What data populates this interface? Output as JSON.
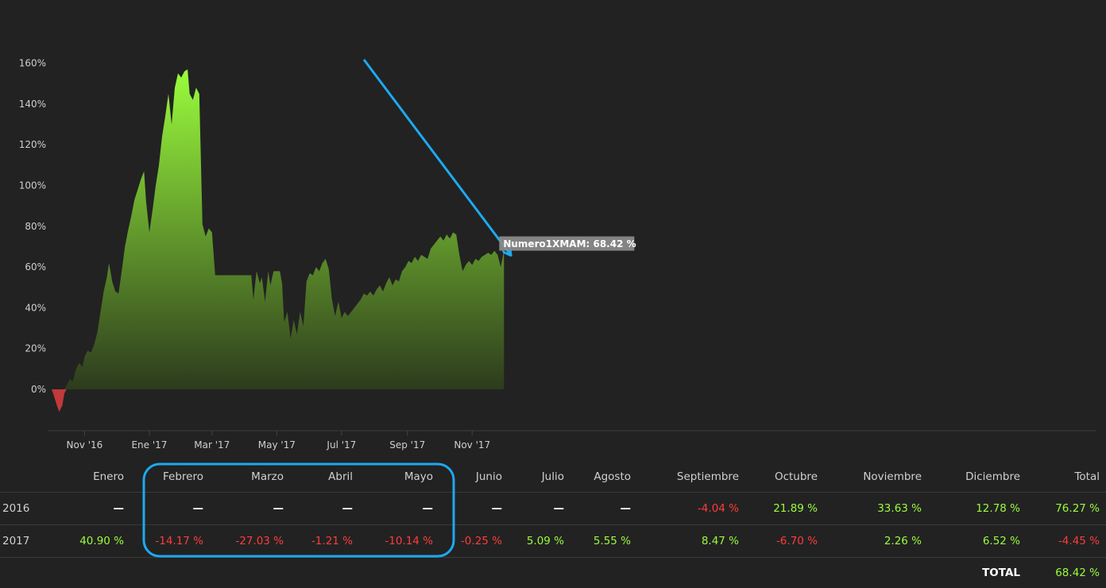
{
  "chart_data": {
    "type": "area",
    "series_name": "Numero1XMAM",
    "tooltip": "Numero1XMAM: 68.42 %",
    "ylim": [
      -20,
      170
    ],
    "y_ticks": [
      "0%",
      "20%",
      "40%",
      "60%",
      "80%",
      "100%",
      "120%",
      "140%",
      "160%"
    ],
    "x_ticks": [
      "Nov '16",
      "Ene '17",
      "Mar '17",
      "May '17",
      "Jul '17",
      "Sep '17",
      "Nov '17"
    ],
    "points": [
      [
        "2016-10-01",
        0
      ],
      [
        "2016-10-03",
        -3
      ],
      [
        "2016-10-06",
        -8
      ],
      [
        "2016-10-08",
        -11
      ],
      [
        "2016-10-11",
        -8
      ],
      [
        "2016-10-13",
        -2
      ],
      [
        "2016-10-15",
        2
      ],
      [
        "2016-10-18",
        5
      ],
      [
        "2016-10-21",
        4
      ],
      [
        "2016-10-24",
        10
      ],
      [
        "2016-10-27",
        13
      ],
      [
        "2016-10-30",
        11
      ],
      [
        "2016-11-01",
        16
      ],
      [
        "2016-11-04",
        19
      ],
      [
        "2016-11-07",
        18
      ],
      [
        "2016-11-10",
        22
      ],
      [
        "2016-11-13",
        28
      ],
      [
        "2016-11-16",
        38
      ],
      [
        "2016-11-19",
        48
      ],
      [
        "2016-11-22",
        55
      ],
      [
        "2016-11-24",
        62
      ],
      [
        "2016-11-27",
        53
      ],
      [
        "2016-11-30",
        48
      ],
      [
        "2016-12-03",
        47
      ],
      [
        "2016-12-06",
        58
      ],
      [
        "2016-12-09",
        70
      ],
      [
        "2016-12-12",
        78
      ],
      [
        "2016-12-15",
        85
      ],
      [
        "2016-12-18",
        93
      ],
      [
        "2016-12-21",
        98
      ],
      [
        "2016-12-24",
        103
      ],
      [
        "2016-12-27",
        107
      ],
      [
        "2016-12-29",
        92
      ],
      [
        "2017-01-01",
        77
      ],
      [
        "2017-01-04",
        88
      ],
      [
        "2017-01-07",
        100
      ],
      [
        "2017-01-10",
        110
      ],
      [
        "2017-01-13",
        124
      ],
      [
        "2017-01-16",
        134
      ],
      [
        "2017-01-19",
        145
      ],
      [
        "2017-01-22",
        130
      ],
      [
        "2017-01-25",
        148
      ],
      [
        "2017-01-28",
        155
      ],
      [
        "2017-01-31",
        153
      ],
      [
        "2017-02-03",
        156
      ],
      [
        "2017-02-06",
        157
      ],
      [
        "2017-02-08",
        145
      ],
      [
        "2017-02-11",
        142
      ],
      [
        "2017-02-14",
        148
      ],
      [
        "2017-02-17",
        145
      ],
      [
        "2017-02-20",
        81
      ],
      [
        "2017-02-23",
        75
      ],
      [
        "2017-02-26",
        79
      ],
      [
        "2017-03-01",
        77
      ],
      [
        "2017-03-04",
        56
      ],
      [
        "2017-03-10",
        56
      ],
      [
        "2017-03-20",
        56
      ],
      [
        "2017-03-30",
        56
      ],
      [
        "2017-04-07",
        56
      ],
      [
        "2017-04-09",
        44
      ],
      [
        "2017-04-12",
        58
      ],
      [
        "2017-04-15",
        52
      ],
      [
        "2017-04-17",
        55
      ],
      [
        "2017-04-20",
        43
      ],
      [
        "2017-04-23",
        58
      ],
      [
        "2017-04-25",
        51
      ],
      [
        "2017-04-28",
        58
      ],
      [
        "2017-05-04",
        58
      ],
      [
        "2017-05-06",
        52
      ],
      [
        "2017-05-08",
        33
      ],
      [
        "2017-05-11",
        38
      ],
      [
        "2017-05-14",
        25
      ],
      [
        "2017-05-17",
        34
      ],
      [
        "2017-05-20",
        27
      ],
      [
        "2017-05-23",
        38
      ],
      [
        "2017-05-26",
        31
      ],
      [
        "2017-05-29",
        53
      ],
      [
        "2017-06-01",
        57
      ],
      [
        "2017-06-04",
        56
      ],
      [
        "2017-06-07",
        60
      ],
      [
        "2017-06-10",
        58
      ],
      [
        "2017-06-13",
        62
      ],
      [
        "2017-06-16",
        64
      ],
      [
        "2017-06-19",
        59
      ],
      [
        "2017-06-22",
        44
      ],
      [
        "2017-06-25",
        36
      ],
      [
        "2017-06-28",
        43
      ],
      [
        "2017-07-01",
        35
      ],
      [
        "2017-07-04",
        38
      ],
      [
        "2017-07-07",
        36
      ],
      [
        "2017-07-10",
        38
      ],
      [
        "2017-07-13",
        40
      ],
      [
        "2017-07-16",
        42
      ],
      [
        "2017-07-19",
        44
      ],
      [
        "2017-07-22",
        47
      ],
      [
        "2017-07-25",
        46
      ],
      [
        "2017-07-28",
        48
      ],
      [
        "2017-07-31",
        46
      ],
      [
        "2017-08-03",
        49
      ],
      [
        "2017-08-06",
        51
      ],
      [
        "2017-08-09",
        48
      ],
      [
        "2017-08-12",
        52
      ],
      [
        "2017-08-15",
        55
      ],
      [
        "2017-08-18",
        51
      ],
      [
        "2017-08-21",
        54
      ],
      [
        "2017-08-24",
        53
      ],
      [
        "2017-08-27",
        58
      ],
      [
        "2017-08-30",
        60
      ],
      [
        "2017-09-02",
        63
      ],
      [
        "2017-09-05",
        62
      ],
      [
        "2017-09-08",
        65
      ],
      [
        "2017-09-11",
        63
      ],
      [
        "2017-09-14",
        66
      ],
      [
        "2017-09-17",
        65
      ],
      [
        "2017-09-20",
        64
      ],
      [
        "2017-09-23",
        69
      ],
      [
        "2017-09-26",
        71
      ],
      [
        "2017-09-29",
        73
      ],
      [
        "2017-10-02",
        75
      ],
      [
        "2017-10-05",
        73
      ],
      [
        "2017-10-08",
        76
      ],
      [
        "2017-10-11",
        74
      ],
      [
        "2017-10-14",
        77
      ],
      [
        "2017-10-17",
        76
      ],
      [
        "2017-10-20",
        66
      ],
      [
        "2017-10-23",
        58
      ],
      [
        "2017-10-26",
        61
      ],
      [
        "2017-10-29",
        63
      ],
      [
        "2017-11-01",
        61
      ],
      [
        "2017-11-04",
        64
      ],
      [
        "2017-11-07",
        63
      ],
      [
        "2017-11-10",
        65
      ],
      [
        "2017-11-13",
        66
      ],
      [
        "2017-11-16",
        67
      ],
      [
        "2017-11-19",
        66
      ],
      [
        "2017-11-22",
        68
      ],
      [
        "2017-11-25",
        66
      ],
      [
        "2017-11-28",
        60
      ],
      [
        "2017-12-01",
        68.42
      ]
    ],
    "colors": {
      "positive_top": "#9afc3c",
      "positive_bottom": "#2e3d1c",
      "negative": "#c0393b",
      "annotation": "#1ea9f0"
    }
  },
  "table": {
    "months": [
      "Enero",
      "Febrero",
      "Marzo",
      "Abril",
      "Mayo",
      "Junio",
      "Julio",
      "Agosto",
      "Septiembre",
      "Octubre",
      "Noviembre",
      "Diciembre"
    ],
    "total_header": "Total",
    "rows": [
      {
        "year": "2016",
        "values": [
          "—",
          "—",
          "—",
          "—",
          "—",
          "—",
          "—",
          "—",
          "-4.04 %",
          "21.89 %",
          "33.63 %",
          "12.78 %"
        ],
        "total": "76.27 %"
      },
      {
        "year": "2017",
        "values": [
          "40.90 %",
          "-14.17 %",
          "-27.03 %",
          "-1.21 %",
          "-10.14 %",
          "-0.25 %",
          "5.09 %",
          "5.55 %",
          "8.47 %",
          "-6.70 %",
          "2.26 %",
          "6.52 %"
        ],
        "total": "-4.45 %"
      }
    ],
    "total_label": "TOTAL",
    "total_value": "68.42 %"
  }
}
